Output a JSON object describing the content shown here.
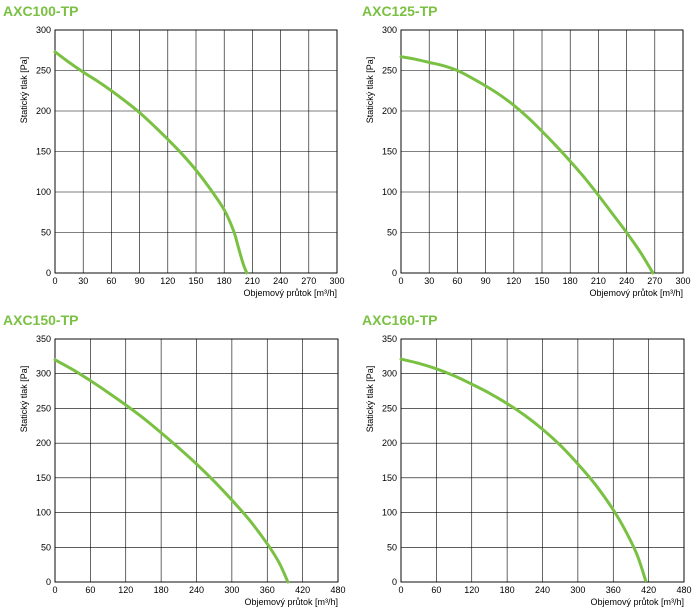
{
  "colors": {
    "accent": "#7ac143",
    "grid": "#000000",
    "frame": "#000000"
  },
  "chart_data": [
    {
      "type": "line",
      "title": "AXC100-TP",
      "xlabel": "Objemový průtok [m³/h]",
      "ylabel": "Statický tlak [Pa]",
      "xlim": [
        0,
        300
      ],
      "ylim": [
        0,
        300
      ],
      "xticks": [
        0,
        30,
        60,
        90,
        120,
        150,
        180,
        210,
        240,
        270,
        300
      ],
      "yticks": [
        0,
        50,
        100,
        150,
        200,
        250,
        300
      ],
      "grid": true,
      "x": [
        0,
        15,
        30,
        45,
        60,
        75,
        90,
        105,
        120,
        135,
        150,
        165,
        180,
        190,
        195,
        200,
        204
      ],
      "y": [
        273,
        260,
        248,
        237,
        225,
        212,
        198,
        182,
        165,
        147,
        127,
        104,
        78,
        52,
        32,
        12,
        0
      ]
    },
    {
      "type": "line",
      "title": "AXC125-TP",
      "xlabel": "Objemový průtok [m³/h]",
      "ylabel": "Statický tlak [Pa]",
      "xlim": [
        0,
        300
      ],
      "ylim": [
        0,
        300
      ],
      "xticks": [
        0,
        30,
        60,
        90,
        120,
        150,
        180,
        210,
        240,
        270,
        300
      ],
      "yticks": [
        0,
        50,
        100,
        150,
        200,
        250,
        300
      ],
      "grid": true,
      "x": [
        0,
        15,
        30,
        45,
        60,
        75,
        90,
        105,
        120,
        135,
        150,
        165,
        180,
        195,
        210,
        225,
        240,
        255,
        268
      ],
      "y": [
        267,
        264,
        260,
        256,
        250,
        241,
        231,
        220,
        207,
        192,
        175,
        157,
        138,
        118,
        96,
        73,
        50,
        25,
        0
      ]
    },
    {
      "type": "line",
      "title": "AXC150-TP",
      "xlabel": "Objemový průtok [m³/h]",
      "ylabel": "Statický tlak [Pa]",
      "xlim": [
        0,
        480
      ],
      "ylim": [
        0,
        350
      ],
      "xticks": [
        0,
        60,
        120,
        180,
        240,
        300,
        360,
        420,
        480
      ],
      "yticks": [
        0,
        50,
        100,
        150,
        200,
        250,
        300,
        350
      ],
      "grid": true,
      "x": [
        0,
        30,
        60,
        90,
        120,
        150,
        180,
        210,
        240,
        270,
        300,
        330,
        360,
        380,
        395
      ],
      "y": [
        320,
        306,
        290,
        273,
        255,
        236,
        215,
        193,
        170,
        145,
        118,
        89,
        55,
        28,
        0
      ]
    },
    {
      "type": "line",
      "title": "AXC160-TP",
      "xlabel": "Objemový průtok [m³/h]",
      "ylabel": "Statický tlak [Pa]",
      "xlim": [
        0,
        480
      ],
      "ylim": [
        0,
        350
      ],
      "xticks": [
        0,
        60,
        120,
        180,
        240,
        300,
        360,
        420,
        480
      ],
      "yticks": [
        0,
        50,
        100,
        150,
        200,
        250,
        300,
        350
      ],
      "grid": true,
      "x": [
        0,
        30,
        60,
        90,
        120,
        150,
        180,
        210,
        240,
        270,
        300,
        330,
        360,
        380,
        400,
        415
      ],
      "y": [
        321,
        315,
        307,
        297,
        285,
        272,
        257,
        240,
        220,
        197,
        170,
        140,
        104,
        75,
        40,
        2
      ]
    }
  ]
}
